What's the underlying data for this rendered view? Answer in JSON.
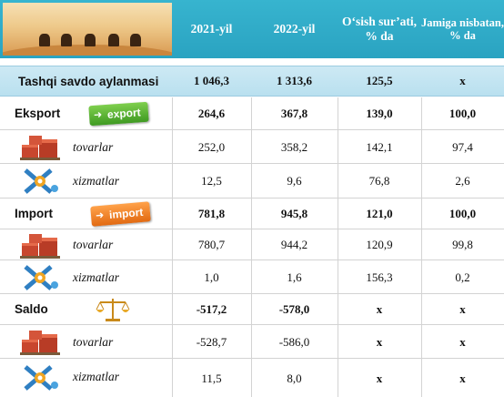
{
  "header": {
    "columns": [
      "2021-yil",
      "2022-yil",
      "O‘sish sur’ati, % da",
      "Jamiga nisbatan, % da"
    ]
  },
  "total": {
    "label": "Tashqi savdo aylanmasi",
    "values": [
      "1 046,3",
      "1 313,6",
      "125,5",
      "x"
    ]
  },
  "rows": [
    {
      "label": "Eksport",
      "badge": "export",
      "values": [
        "264,6",
        "367,8",
        "139,0",
        "100,0"
      ]
    },
    {
      "label": "tovarlar",
      "values": [
        "252,0",
        "358,2",
        "142,1",
        "97,4"
      ]
    },
    {
      "label": "xizmatlar",
      "values": [
        "12,5",
        "9,6",
        "76,8",
        "2,6"
      ]
    },
    {
      "label": "Import",
      "badge": "import",
      "values": [
        "781,8",
        "945,8",
        "121,0",
        "100,0"
      ]
    },
    {
      "label": "tovarlar",
      "values": [
        "780,7",
        "944,2",
        "120,9",
        "99,8"
      ]
    },
    {
      "label": "xizmatlar",
      "values": [
        "1,0",
        "1,6",
        "156,3",
        "0,2"
      ]
    },
    {
      "label": "Saldo",
      "values": [
        "-517,2",
        "-578,0",
        "x",
        "x"
      ]
    },
    {
      "label": "tovarlar",
      "values": [
        "-528,7",
        "-586,0",
        "x",
        "x"
      ]
    },
    {
      "label": "xizmatlar",
      "values": [
        "11,5",
        "8,0",
        "x",
        "x"
      ]
    }
  ],
  "icons": {
    "header_image": "desert-caravan-image",
    "goods": "cargo-boxes-icon",
    "services": "tools-gears-icon",
    "balance": "scales-icon"
  },
  "colors": {
    "header": "#2aa3c1",
    "total_row": "#c4e5f2",
    "export_badge": "#4fae2c",
    "import_badge": "#f07d20"
  }
}
